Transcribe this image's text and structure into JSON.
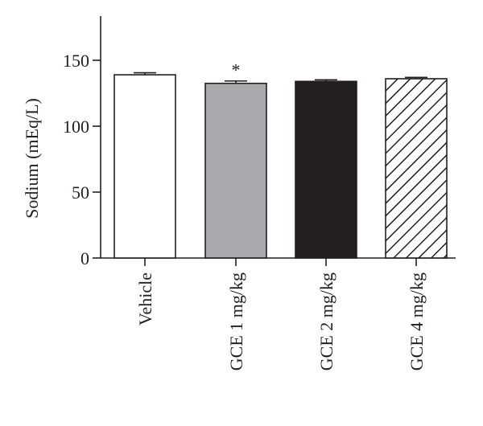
{
  "chart_data": {
    "type": "bar",
    "ylabel": "Sodium (mEq/L)",
    "xlabel": "",
    "ylim": [
      0,
      180
    ],
    "yticks": [
      0,
      50,
      100,
      150
    ],
    "categories": [
      "Vehicle",
      "GCE 1 mg/kg",
      "GCE 2 mg/kg",
      "GCE 4 mg/kg"
    ],
    "values": [
      139,
      132.5,
      134,
      136
    ],
    "errors": [
      1.5,
      1.8,
      1.2,
      1.0
    ],
    "annotations": [
      "",
      "*",
      "",
      ""
    ],
    "styles": [
      {
        "fill": "#ffffff",
        "pattern": "none"
      },
      {
        "fill": "#a7a9ac",
        "pattern": "none"
      },
      {
        "fill": "#231f20",
        "pattern": "none"
      },
      {
        "fill": "#ffffff",
        "pattern": "hatch"
      }
    ],
    "grid": false,
    "axis_color": "#231f20"
  }
}
